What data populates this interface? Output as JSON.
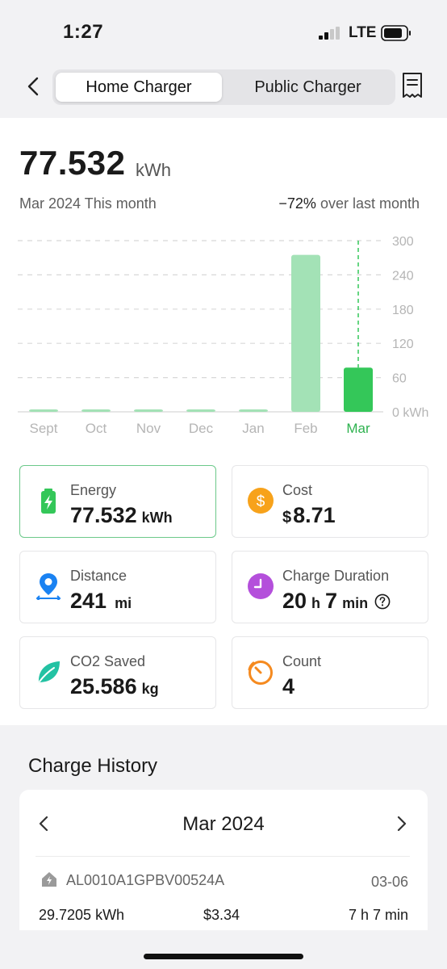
{
  "status_bar": {
    "time": "1:27",
    "network": "LTE",
    "icons": [
      "signal-icon",
      "battery-icon"
    ]
  },
  "nav": {
    "icons": {
      "back": "chevron-left-icon",
      "receipt": "receipt-icon"
    },
    "tabs": [
      {
        "label": "Home Charger",
        "selected": true
      },
      {
        "label": "Public Charger",
        "selected": false
      }
    ]
  },
  "summary": {
    "value": "77.532",
    "unit": "kWh",
    "period": "Mar 2024 This month",
    "change": "−72%",
    "change_text": "over last month"
  },
  "chart_data": {
    "type": "bar",
    "categories": [
      "Sept",
      "Oct",
      "Nov",
      "Dec",
      "Jan",
      "Feb",
      "Mar"
    ],
    "values": [
      0,
      0,
      0,
      0,
      0,
      275,
      77.532
    ],
    "selected_index": 6,
    "y_ticks": [
      "300",
      "240",
      "180",
      "120",
      "60",
      "0 kWh"
    ],
    "ylim": [
      0,
      300
    ],
    "grid": true,
    "colors": {
      "bar": "#a3e2b6",
      "selected_bar": "#34c759",
      "selected_label": "#2eb24f",
      "axis_label": "#b5b5b5",
      "grid": "#d8d8d8"
    }
  },
  "stats": {
    "energy": {
      "label": "Energy",
      "value": "77.532",
      "unit": "kWh",
      "icon": "battery-charging-icon"
    },
    "cost": {
      "label": "Cost",
      "currency": "$",
      "value": "8.71",
      "icon": "dollar-icon"
    },
    "distance": {
      "label": "Distance",
      "value": "241",
      "unit": "mi",
      "icon": "map-pin-icon"
    },
    "duration": {
      "label": "Charge Duration",
      "hours": "20",
      "h_unit": "h",
      "minutes": "7",
      "m_unit": "min",
      "icon": "clock-icon",
      "help_icon": "question-circle-icon"
    },
    "co2": {
      "label": "CO2 Saved",
      "value": "25.586",
      "unit": "kg",
      "icon": "leaf-icon"
    },
    "count": {
      "label": "Count",
      "value": "4",
      "icon": "timer-icon"
    }
  },
  "history": {
    "title": "Charge History",
    "month": "Mar 2024",
    "icons": {
      "prev": "chevron-left-icon",
      "next": "chevron-right-icon"
    },
    "records": [
      {
        "charger_id": "AL0010A1GPBV00524A",
        "date": "03-06",
        "energy": "29.7205 kWh",
        "cost": "$3.34",
        "duration": "7 h 7 min",
        "icon": "home-charger-icon"
      }
    ]
  },
  "colors": {
    "accent_green": "#34c759",
    "cost_orange": "#f7a21b",
    "distance_blue": "#1a82f2",
    "duration_purple": "#b44fdb",
    "co2_teal": "#23c2a3",
    "count_orange": "#f58a1f"
  }
}
